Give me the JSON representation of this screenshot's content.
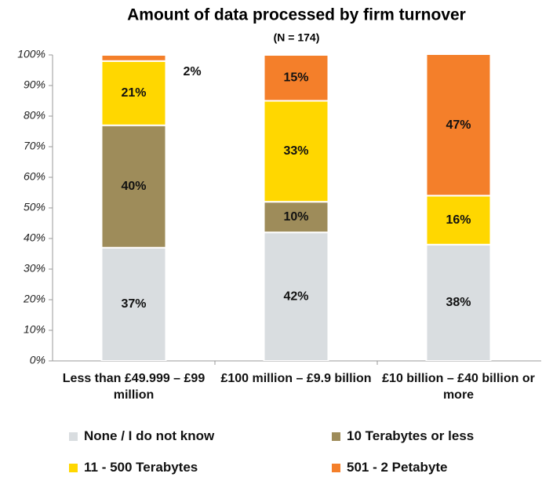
{
  "chart_data": {
    "type": "stacked_bar",
    "title": "Amount of data processed by firm turnover",
    "subtitle": "(N = 174)",
    "categories": [
      "Less than £49.999 – £99 million",
      "£100 million – £9.9 billion",
      "£10 billion – £40 billion or more"
    ],
    "series": [
      {
        "name": "None / I do not know",
        "color": "#d9dde0",
        "values": [
          37,
          42,
          38
        ],
        "value_labels": [
          "37%",
          "42%",
          "38%"
        ]
      },
      {
        "name": "10 Terabytes or less",
        "color": "#9e8c5a",
        "values": [
          40,
          10,
          null
        ],
        "value_labels": [
          "40%",
          "10%",
          null
        ]
      },
      {
        "name": "11 - 500 Terabytes",
        "color": "#ffd700",
        "values": [
          21,
          33,
          16
        ],
        "value_labels": [
          "21%",
          "33%",
          "16%"
        ]
      },
      {
        "name": "501 - 2 Petabyte",
        "color": "#f47f2a",
        "values": [
          2,
          15,
          47
        ],
        "value_labels": [
          "2%",
          "15%",
          "47%"
        ]
      }
    ],
    "ylim": [
      0,
      100
    ],
    "yticks": [
      {
        "value": 0,
        "label": "0%"
      },
      {
        "value": 10,
        "label": "10%"
      },
      {
        "value": 20,
        "label": "20%"
      },
      {
        "value": 30,
        "label": "30%"
      },
      {
        "value": 40,
        "label": "40%"
      },
      {
        "value": 50,
        "label": "50%"
      },
      {
        "value": 60,
        "label": "60%"
      },
      {
        "value": 70,
        "label": "70%"
      },
      {
        "value": 80,
        "label": "80%"
      },
      {
        "value": 90,
        "label": "90%"
      },
      {
        "value": 100,
        "label": "100%"
      }
    ],
    "legend": "bottom"
  }
}
